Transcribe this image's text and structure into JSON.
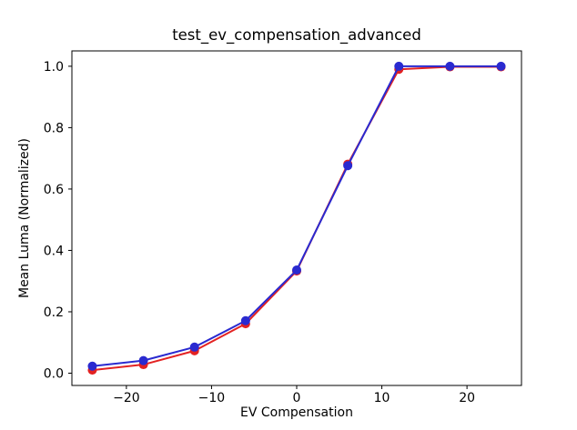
{
  "figure": {
    "background": "#ffffff",
    "axis_color": "#000000",
    "text_color": "#000000"
  },
  "chart_data": {
    "type": "line",
    "title": "test_ev_compensation_advanced",
    "xlabel": "EV Compensation",
    "ylabel": "Mean Luma (Normalized)",
    "x": [
      -24,
      -18,
      -12,
      -6,
      0,
      6,
      12,
      18,
      24
    ],
    "series": [
      {
        "name": "red-series",
        "color": "#e32222",
        "marker": "circle",
        "values": [
          0.01,
          0.028,
          0.073,
          0.161,
          0.333,
          0.681,
          0.99,
          0.998,
          0.998
        ]
      },
      {
        "name": "blue-series",
        "color": "#2a2ad0",
        "marker": "circle",
        "values": [
          0.023,
          0.041,
          0.085,
          0.171,
          0.336,
          0.676,
          1.0,
          1.0,
          1.0
        ]
      }
    ],
    "xlim": [
      -26.4,
      26.4
    ],
    "ylim": [
      -0.04,
      1.05
    ],
    "xticks": [
      -20,
      -10,
      0,
      10,
      20
    ],
    "yticks": [
      0.0,
      0.2,
      0.4,
      0.6,
      0.8,
      1.0
    ],
    "grid": false,
    "legend": null
  }
}
